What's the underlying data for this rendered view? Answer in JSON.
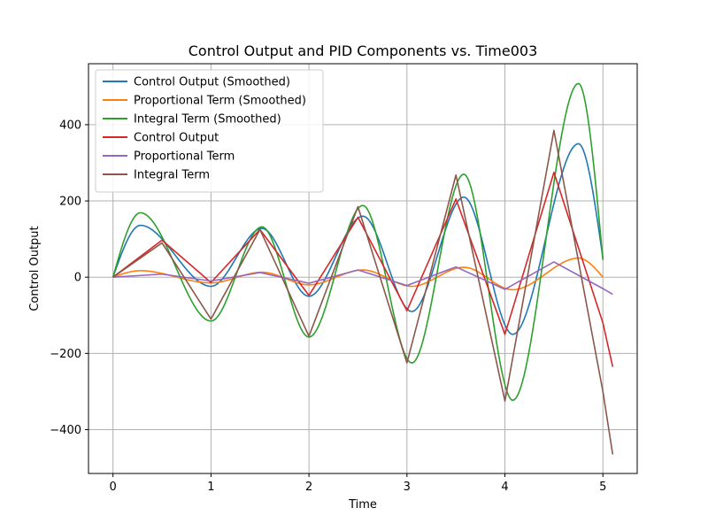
{
  "chart_data": {
    "type": "line",
    "title": "Control Output and PID Components vs. Time003",
    "xlabel": "Time",
    "ylabel": "Control Output",
    "xlim": [
      -0.25,
      5.35
    ],
    "ylim": [
      -515,
      560
    ],
    "xticks": [
      0,
      1,
      2,
      3,
      4,
      5
    ],
    "yticks": [
      -400,
      -200,
      0,
      200,
      400
    ],
    "xtick_labels": [
      "0",
      "1",
      "2",
      "3",
      "4",
      "5"
    ],
    "ytick_labels": [
      "−400",
      "−200",
      "0",
      "200",
      "400"
    ],
    "grid": true,
    "legend_position": "top-left",
    "series": [
      {
        "name": "Control Output (Smoothed)",
        "color": "#1f77b4",
        "style": "smooth",
        "x": [
          0,
          0.28,
          1.0,
          1.52,
          2.0,
          2.55,
          3.05,
          3.58,
          4.08,
          4.75,
          5.0
        ],
        "y": [
          0,
          136,
          -24,
          128,
          -50,
          160,
          -90,
          210,
          -150,
          350,
          50
        ]
      },
      {
        "name": "Proportional Term (Smoothed)",
        "color": "#ff7f0e",
        "style": "smooth",
        "x": [
          0,
          0.28,
          1.0,
          1.52,
          2.0,
          2.55,
          3.05,
          3.58,
          4.08,
          4.75,
          5.0
        ],
        "y": [
          0,
          17,
          -15,
          13,
          -20,
          19,
          -24,
          26,
          -33,
          50,
          0
        ]
      },
      {
        "name": "Integral Term (Smoothed)",
        "color": "#2ca02c",
        "style": "smooth",
        "x": [
          0,
          0.28,
          1.0,
          1.52,
          2.0,
          2.55,
          3.05,
          3.58,
          4.08,
          4.75,
          5.0
        ],
        "y": [
          0,
          169,
          -115,
          132,
          -157,
          188,
          -225,
          270,
          -323,
          508,
          45
        ]
      },
      {
        "name": "Control Output",
        "color": "#d62728",
        "style": "linear",
        "x": [
          0,
          0.5,
          1.0,
          1.5,
          2.0,
          2.5,
          3.0,
          3.5,
          4.0,
          4.5,
          5.0,
          5.1
        ],
        "y": [
          0,
          97,
          -14,
          125,
          -48,
          157,
          -88,
          205,
          -150,
          275,
          -120,
          -235
        ]
      },
      {
        "name": "Proportional Term",
        "color": "#9467bd",
        "style": "linear",
        "x": [
          0,
          0.5,
          1.0,
          1.5,
          2.0,
          2.5,
          3.0,
          3.5,
          4.0,
          4.5,
          5.0,
          5.1
        ],
        "y": [
          0,
          8,
          -10,
          12,
          -16,
          19,
          -22,
          27,
          -32,
          40,
          -30,
          -45
        ]
      },
      {
        "name": "Integral Term",
        "color": "#8c564b",
        "style": "linear",
        "x": [
          0,
          0.5,
          1.0,
          1.5,
          2.0,
          2.5,
          3.0,
          3.5,
          4.0,
          4.5,
          5.0,
          5.1
        ],
        "y": [
          0,
          90,
          -110,
          125,
          -155,
          185,
          -225,
          268,
          -325,
          385,
          -300,
          -465
        ]
      }
    ]
  }
}
